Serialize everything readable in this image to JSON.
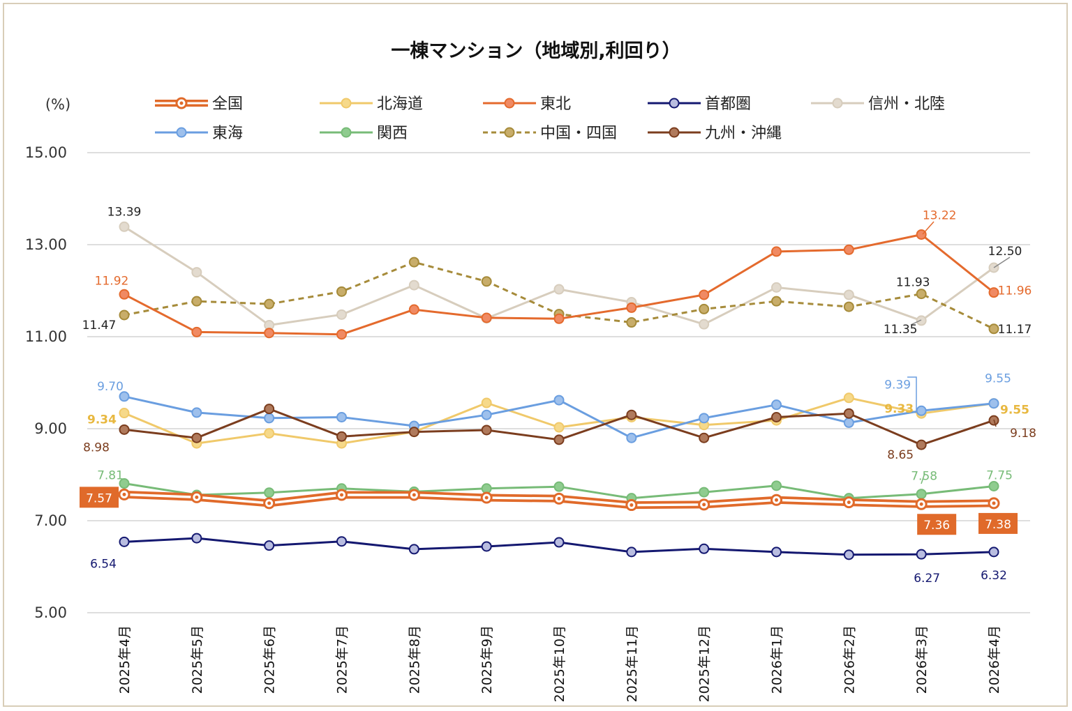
{
  "chart_data": {
    "type": "line",
    "title": "一棟マンション（地域別,利回り）",
    "ylabel": "(%)",
    "ylim": [
      5,
      15
    ],
    "yticks": [
      "5.00",
      "7.00",
      "9.00",
      "11.00",
      "13.00",
      "15.00"
    ],
    "grid": true,
    "legend_position": "top",
    "categories": [
      "2025年4月",
      "2025年5月",
      "2025年6月",
      "2025年7月",
      "2025年8月",
      "2025年9月",
      "2025年10月",
      "2025年11月",
      "2025年12月",
      "2026年1月",
      "2026年2月",
      "2026年3月",
      "2026年4月"
    ],
    "series": [
      {
        "name": "全国",
        "color": "#e06a2a",
        "marker": "#e06a2a",
        "style": "double",
        "values": [
          7.57,
          7.51,
          7.38,
          7.56,
          7.56,
          7.5,
          7.48,
          7.34,
          7.35,
          7.45,
          7.4,
          7.36,
          7.38
        ],
        "labels": [
          {
            "i": 0,
            "text": "7.57"
          },
          {
            "i": 11,
            "text": "7.36"
          },
          {
            "i": 12,
            "text": "7.38"
          }
        ]
      },
      {
        "name": "北海道",
        "color": "#f0c96a",
        "marker": "#f6d98a",
        "style": "solid",
        "values": [
          9.34,
          8.68,
          8.9,
          8.68,
          8.93,
          9.56,
          9.03,
          9.25,
          9.08,
          9.18,
          9.67,
          9.33,
          9.55
        ],
        "labels": [
          {
            "i": 0,
            "text": "9.34"
          },
          {
            "i": 11,
            "text": "9.33"
          },
          {
            "i": 12,
            "text": "9.55"
          }
        ]
      },
      {
        "name": "東北",
        "color": "#e46a2d",
        "marker": "#f08a63",
        "style": "solid",
        "values": [
          11.92,
          11.1,
          11.08,
          11.05,
          11.59,
          11.41,
          11.39,
          11.63,
          11.91,
          12.85,
          12.89,
          13.22,
          11.96
        ],
        "labels": [
          {
            "i": 0,
            "text": "11.92"
          },
          {
            "i": 11,
            "text": "13.22"
          },
          {
            "i": 12,
            "text": "11.96"
          }
        ]
      },
      {
        "name": "首都圏",
        "color": "#141870",
        "marker": "#b9bde0",
        "style": "solid",
        "values": [
          6.54,
          6.62,
          6.46,
          6.55,
          6.38,
          6.44,
          6.53,
          6.32,
          6.39,
          6.32,
          6.26,
          6.27,
          6.32
        ],
        "labels": [
          {
            "i": 0,
            "text": "6.54"
          },
          {
            "i": 11,
            "text": "6.27"
          },
          {
            "i": 12,
            "text": "6.32"
          }
        ]
      },
      {
        "name": "信州・北陸",
        "color": "#d7cdbd",
        "marker": "#e3dbcf",
        "style": "solid",
        "values": [
          13.39,
          12.4,
          11.25,
          11.48,
          12.12,
          11.4,
          12.03,
          11.75,
          11.27,
          12.07,
          11.91,
          11.35,
          12.5
        ],
        "labels": [
          {
            "i": 0,
            "text": "13.39"
          },
          {
            "i": 11,
            "text": "11.35"
          },
          {
            "i": 12,
            "text": "12.50"
          }
        ]
      },
      {
        "name": "東海",
        "color": "#6a9ee0",
        "marker": "#9ec0ec",
        "style": "solid",
        "values": [
          9.7,
          9.35,
          9.23,
          9.25,
          9.06,
          9.3,
          9.62,
          8.8,
          9.23,
          9.52,
          9.13,
          9.39,
          9.55
        ],
        "labels": [
          {
            "i": 0,
            "text": "9.70"
          },
          {
            "i": 11,
            "text": "9.39"
          },
          {
            "i": 12,
            "text": "9.55"
          }
        ]
      },
      {
        "name": "関西",
        "color": "#77bb77",
        "marker": "#8fcc8f",
        "style": "solid",
        "values": [
          7.81,
          7.56,
          7.61,
          7.7,
          7.63,
          7.7,
          7.74,
          7.49,
          7.62,
          7.76,
          7.49,
          7.58,
          7.75
        ],
        "labels": [
          {
            "i": 0,
            "text": "7.81"
          },
          {
            "i": 11,
            "text": "7.58"
          },
          {
            "i": 12,
            "text": "7.75"
          }
        ]
      },
      {
        "name": "中国・四国",
        "color": "#a68b3a",
        "marker": "#c8ad6a",
        "style": "dashed",
        "values": [
          11.47,
          11.77,
          11.71,
          11.98,
          12.62,
          12.2,
          11.49,
          11.31,
          11.6,
          11.77,
          11.65,
          11.93,
          11.17
        ],
        "labels": [
          {
            "i": 0,
            "text": "11.47"
          },
          {
            "i": 11,
            "text": "11.93"
          },
          {
            "i": 12,
            "text": "11.17"
          }
        ]
      },
      {
        "name": "九州・沖縄",
        "color": "#7b3d1e",
        "marker": "#b07a5c",
        "style": "solid",
        "values": [
          8.98,
          8.8,
          9.43,
          8.83,
          8.93,
          8.97,
          8.76,
          9.3,
          8.8,
          9.25,
          9.33,
          8.65,
          9.18
        ],
        "labels": [
          {
            "i": 0,
            "text": "8.98"
          },
          {
            "i": 11,
            "text": "8.65"
          },
          {
            "i": 12,
            "text": "9.18"
          }
        ]
      }
    ]
  }
}
